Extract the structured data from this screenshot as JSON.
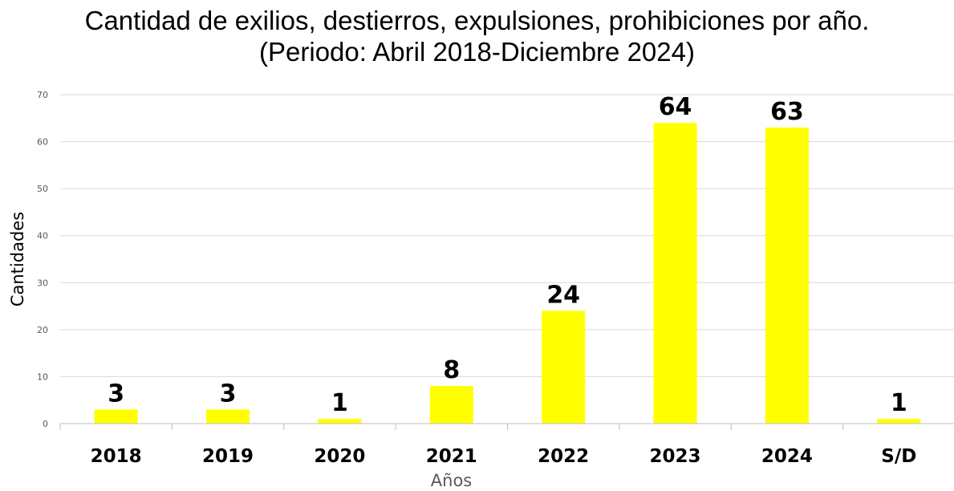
{
  "chart_data": {
    "type": "bar",
    "title_line1": "Cantidad de exilios, destierros, expulsiones, prohibiciones por año.",
    "title_line2": "(Periodo: Abril 2018-Diciembre 2024)",
    "xlabel": "Años",
    "ylabel": "Cantidades",
    "categories": [
      "2018",
      "2019",
      "2020",
      "2021",
      "2022",
      "2023",
      "2024",
      "S/D"
    ],
    "values": [
      3,
      3,
      1,
      8,
      24,
      64,
      63,
      1
    ],
    "ylim": [
      0,
      70
    ],
    "yticks": [
      0,
      10,
      20,
      30,
      40,
      50,
      60,
      70
    ],
    "grid": true,
    "legend": "none",
    "bar_color": "#ffff00",
    "grid_color": "#d9d9d9"
  }
}
